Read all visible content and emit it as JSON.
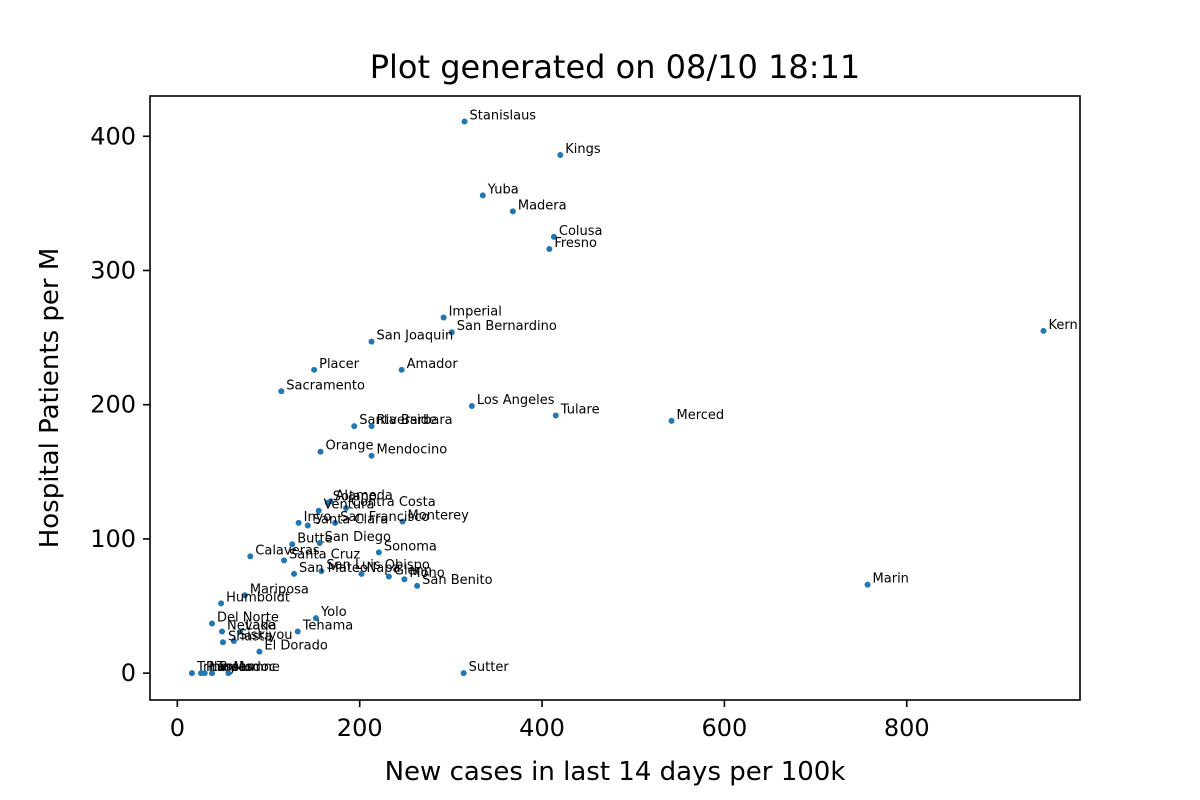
{
  "chart_data": {
    "type": "scatter",
    "title": "Plot generated on 08/10 18:11",
    "xlabel": "New cases in last 14 days per 100k",
    "ylabel": "Hospital Patients per M",
    "xlim": [
      -30,
      990
    ],
    "ylim": [
      -20,
      430
    ],
    "xticks": [
      0,
      200,
      400,
      600,
      800
    ],
    "yticks": [
      0,
      100,
      200,
      300,
      400
    ],
    "grid": false,
    "marker_color": "#1f77b4",
    "points": [
      {
        "label": "Stanislaus",
        "x": 315,
        "y": 411
      },
      {
        "label": "Kings",
        "x": 420,
        "y": 386
      },
      {
        "label": "Yuba",
        "x": 335,
        "y": 356
      },
      {
        "label": "Madera",
        "x": 368,
        "y": 344
      },
      {
        "label": "Colusa",
        "x": 413,
        "y": 325
      },
      {
        "label": "Fresno",
        "x": 408,
        "y": 316
      },
      {
        "label": "Imperial",
        "x": 292,
        "y": 265
      },
      {
        "label": "San Bernardino",
        "x": 301,
        "y": 254
      },
      {
        "label": "Kern",
        "x": 950,
        "y": 255
      },
      {
        "label": "San Joaquin",
        "x": 213,
        "y": 247
      },
      {
        "label": "Amador",
        "x": 246,
        "y": 226
      },
      {
        "label": "Placer",
        "x": 150,
        "y": 226
      },
      {
        "label": "Sacramento",
        "x": 114,
        "y": 210
      },
      {
        "label": "Los Angeles",
        "x": 323,
        "y": 199
      },
      {
        "label": "Tulare",
        "x": 415,
        "y": 192
      },
      {
        "label": "Merced",
        "x": 542,
        "y": 188
      },
      {
        "label": "Santa Barbara",
        "x": 194,
        "y": 184
      },
      {
        "label": "Riverside",
        "x": 213,
        "y": 184
      },
      {
        "label": "Orange",
        "x": 157,
        "y": 165
      },
      {
        "label": "Mendocino",
        "x": 213,
        "y": 162
      },
      {
        "label": "Alameda",
        "x": 168,
        "y": 128
      },
      {
        "label": "Solano",
        "x": 165,
        "y": 127
      },
      {
        "label": "Contra Costa",
        "x": 185,
        "y": 123
      },
      {
        "label": "Ventura",
        "x": 155,
        "y": 121
      },
      {
        "label": "Monterey",
        "x": 247,
        "y": 113
      },
      {
        "label": "San Francisco",
        "x": 173,
        "y": 112
      },
      {
        "label": "Inyo",
        "x": 133,
        "y": 112
      },
      {
        "label": "Santa Clara",
        "x": 143,
        "y": 110
      },
      {
        "label": "Butte",
        "x": 126,
        "y": 96
      },
      {
        "label": "San Diego",
        "x": 156,
        "y": 97
      },
      {
        "label": "Sonoma",
        "x": 221,
        "y": 90
      },
      {
        "label": "Calaveras",
        "x": 80,
        "y": 87
      },
      {
        "label": "Santa Cruz",
        "x": 117,
        "y": 84
      },
      {
        "label": "San Luis Obispo",
        "x": 158,
        "y": 76
      },
      {
        "label": "San Mateo",
        "x": 128,
        "y": 74
      },
      {
        "label": "Napa",
        "x": 202,
        "y": 74
      },
      {
        "label": "Glenn",
        "x": 232,
        "y": 72
      },
      {
        "label": "Mono",
        "x": 249,
        "y": 70
      },
      {
        "label": "San Benito",
        "x": 263,
        "y": 65
      },
      {
        "label": "Marin",
        "x": 757,
        "y": 66
      },
      {
        "label": "Mariposa",
        "x": 74,
        "y": 58
      },
      {
        "label": "Humboldt",
        "x": 48,
        "y": 52
      },
      {
        "label": "Yolo",
        "x": 152,
        "y": 41
      },
      {
        "label": "Del Norte",
        "x": 38,
        "y": 37
      },
      {
        "label": "Tehama",
        "x": 132,
        "y": 31
      },
      {
        "label": "Nevada",
        "x": 49,
        "y": 31
      },
      {
        "label": "Lake",
        "x": 69,
        "y": 31
      },
      {
        "label": "Siskiyou",
        "x": 62,
        "y": 24
      },
      {
        "label": "Shasta",
        "x": 50,
        "y": 23
      },
      {
        "label": "El Dorado",
        "x": 90,
        "y": 16
      },
      {
        "label": "Sutter",
        "x": 314,
        "y": 0
      },
      {
        "label": "Trinity",
        "x": 16,
        "y": 0
      },
      {
        "label": "Plumas",
        "x": 26,
        "y": 0
      },
      {
        "label": "Lassen",
        "x": 30,
        "y": 0
      },
      {
        "label": "Tuolumne",
        "x": 38,
        "y": 0
      },
      {
        "label": "Modoc",
        "x": 56,
        "y": 0
      }
    ]
  }
}
